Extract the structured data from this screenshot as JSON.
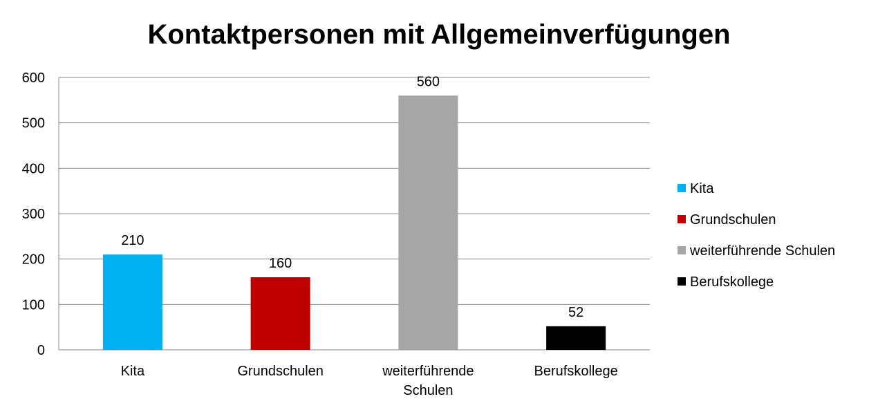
{
  "chart_data": {
    "type": "bar",
    "title": "Kontaktpersonen mit Allgemeinverfügungen",
    "categories": [
      "Kita",
      "Grundschulen",
      "weiterführende Schulen",
      "Berufskollege"
    ],
    "category_lines": [
      [
        "Kita"
      ],
      [
        "Grundschulen"
      ],
      [
        "weiterführende",
        "Schulen"
      ],
      [
        "Berufskollege"
      ]
    ],
    "values": [
      210,
      160,
      560,
      52
    ],
    "data_labels": [
      "210",
      "160",
      "560",
      "52"
    ],
    "colors": [
      "#00B0F0",
      "#C00000",
      "#A6A6A6",
      "#000000"
    ],
    "ylim": [
      0,
      600
    ],
    "yticks": [
      0,
      100,
      200,
      300,
      400,
      500,
      600
    ],
    "ytick_labels": [
      "0",
      "100",
      "200",
      "300",
      "400",
      "500",
      "600"
    ],
    "grid": true,
    "legend": {
      "placement": "right",
      "entries": [
        {
          "label": "Kita",
          "color": "#00B0F0"
        },
        {
          "label": "Grundschulen",
          "color": "#C00000"
        },
        {
          "label": "weiterführende Schulen",
          "color": "#A6A6A6"
        },
        {
          "label": "Berufskollege",
          "color": "#000000"
        }
      ]
    },
    "xlabel": "",
    "ylabel": ""
  }
}
